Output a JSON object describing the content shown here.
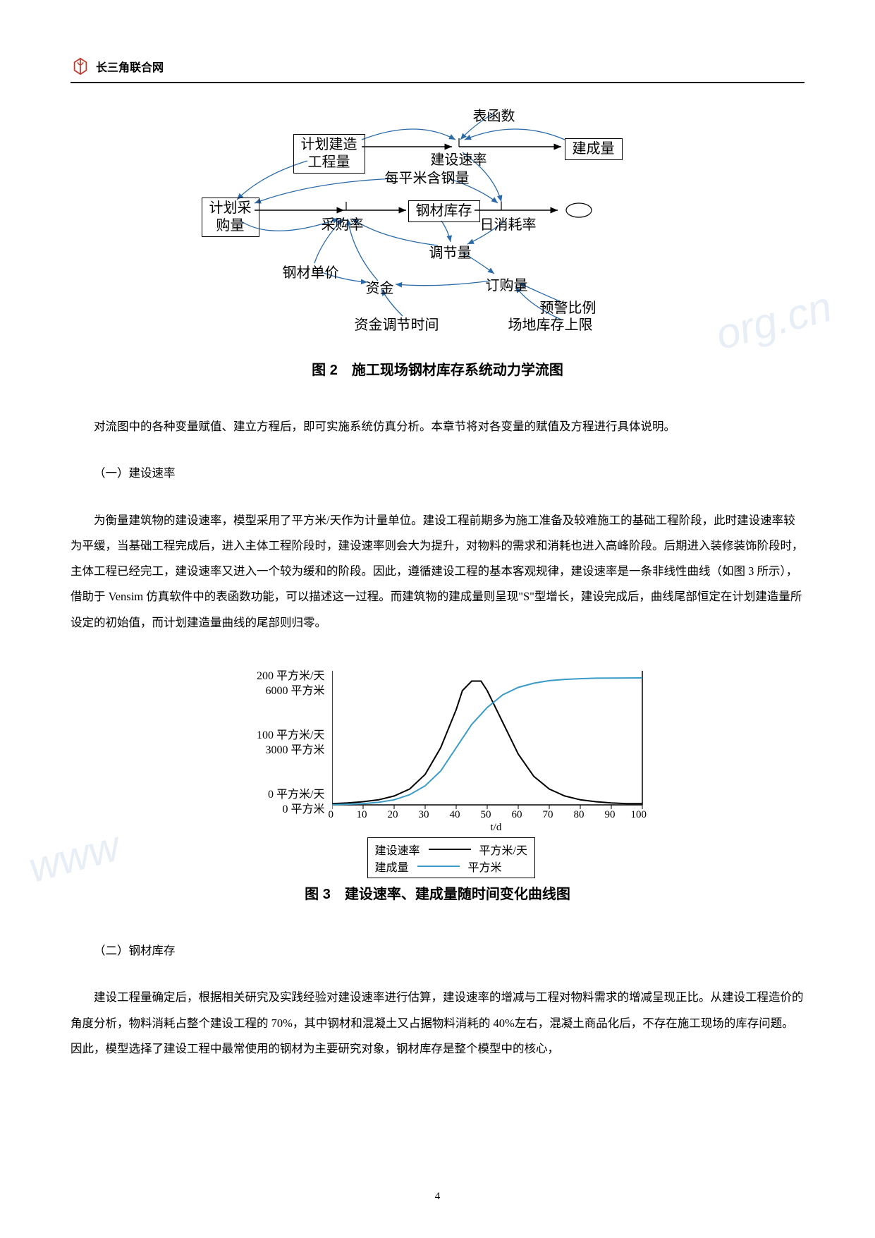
{
  "header": {
    "site_name": "长三角联合网"
  },
  "watermarks": {
    "w1": "org.cn",
    "w2": "www"
  },
  "diagram1": {
    "caption": "图 2　施工现场钢材库存系统动力学流图",
    "nodes": {
      "biaohanshu": "表函数",
      "jihua_jianzao": "计划建造\n工程量",
      "jianchengliang": "建成量",
      "jianshe_sulv": "建设速率",
      "meipingmi": "每平米含钢量",
      "jihua_caigou": "计划采\n购量",
      "caigoulv": "采购率",
      "gangcai_kucun": "钢材库存",
      "rixiaohaolv": "日消耗率",
      "tiaojieliang": "调节量",
      "gangcai_danjia": "钢材单价",
      "zijin": "资金",
      "dinggouliang": "订购量",
      "yujing_bili": "预警比例",
      "zijin_tiaojie": "资金调节时间",
      "changdi_kucun": "场地库存上限"
    }
  },
  "para1": "对流图中的各种变量赋值、建立方程后，即可实施系统仿真分析。本章节将对各变量的赋值及方程进行具体说明。",
  "subhead1": "（一）建设速率",
  "para2": "为衡量建筑物的建设速率，模型采用了平方米/天作为计量单位。建设工程前期多为施工准备及较难施工的基础工程阶段，此时建设速率较为平缓，当基础工程完成后，进入主体工程阶段时，建设速率则会大为提升，对物料的需求和消耗也进入高峰阶段。后期进入装修装饰阶段时，主体工程已经完工，建设速率又进入一个较为缓和的阶段。因此，遵循建设工程的基本客观规律，建设速率是一条非线性曲线（如图 3 所示），借助于 Vensim 仿真软件中的表函数功能，可以描述这一过程。而建筑物的建成量则呈现\"S\"型增长，建设完成后，曲线尾部恒定在计划建造量所设定的初始值，而计划建造量曲线的尾部则归零。",
  "chart": {
    "caption": "图 3　建设速率、建成量随时间变化曲线图",
    "y_ticks": [
      {
        "line1": "200 平方米/天",
        "line2": "6000 平方米"
      },
      {
        "line1": "100 平方米/天",
        "line2": "3000 平方米"
      },
      {
        "line1": "0 平方米/天",
        "line2": "0 平方米"
      }
    ],
    "x_ticks": [
      "0",
      "10",
      "20",
      "30",
      "40",
      "50",
      "60",
      "70",
      "80",
      "90",
      "100"
    ],
    "x_axis_title": "t/d",
    "xlim": [
      0,
      100
    ],
    "ylim_rate": [
      0,
      200
    ],
    "ylim_qty": [
      0,
      6000
    ],
    "legend": [
      {
        "label": "建设速率",
        "unit": "平方米/天",
        "color": "#000000"
      },
      {
        "label": "建成量",
        "unit": "平方米",
        "color": "#3a9bc7"
      }
    ],
    "rate_curve": [
      [
        0,
        2
      ],
      [
        5,
        3
      ],
      [
        10,
        5
      ],
      [
        15,
        8
      ],
      [
        20,
        14
      ],
      [
        25,
        25
      ],
      [
        30,
        48
      ],
      [
        35,
        90
      ],
      [
        40,
        150
      ],
      [
        42,
        180
      ],
      [
        45,
        195
      ],
      [
        48,
        195
      ],
      [
        50,
        180
      ],
      [
        55,
        130
      ],
      [
        60,
        80
      ],
      [
        65,
        45
      ],
      [
        70,
        25
      ],
      [
        75,
        14
      ],
      [
        80,
        8
      ],
      [
        85,
        5
      ],
      [
        90,
        3
      ],
      [
        95,
        2
      ],
      [
        100,
        2
      ]
    ],
    "qty_curve": [
      [
        0,
        10
      ],
      [
        5,
        30
      ],
      [
        10,
        60
      ],
      [
        15,
        120
      ],
      [
        20,
        240
      ],
      [
        25,
        480
      ],
      [
        30,
        900
      ],
      [
        35,
        1600
      ],
      [
        40,
        2700
      ],
      [
        45,
        3800
      ],
      [
        50,
        4600
      ],
      [
        55,
        5200
      ],
      [
        60,
        5550
      ],
      [
        65,
        5750
      ],
      [
        70,
        5870
      ],
      [
        75,
        5930
      ],
      [
        80,
        5965
      ],
      [
        85,
        5985
      ],
      [
        90,
        5995
      ],
      [
        95,
        5998
      ],
      [
        100,
        6000
      ]
    ],
    "rate_color": "#000000",
    "qty_color": "#3a9bc7",
    "background": "#ffffff"
  },
  "subhead2": "（二）钢材库存",
  "para3": "建设工程量确定后，根据相关研究及实践经验对建设速率进行估算，建设速率的增减与工程对物料需求的增减呈现正比。从建设工程造价的角度分析，物料消耗占整个建设工程的 70%，其中钢材和混凝土又占据物料消耗的 40%左右，混凝土商品化后，不存在施工现场的库存问题。因此，模型选择了建设工程中最常使用的钢材为主要研究对象，钢材库存是整个模型中的核心，",
  "page_number": "4"
}
